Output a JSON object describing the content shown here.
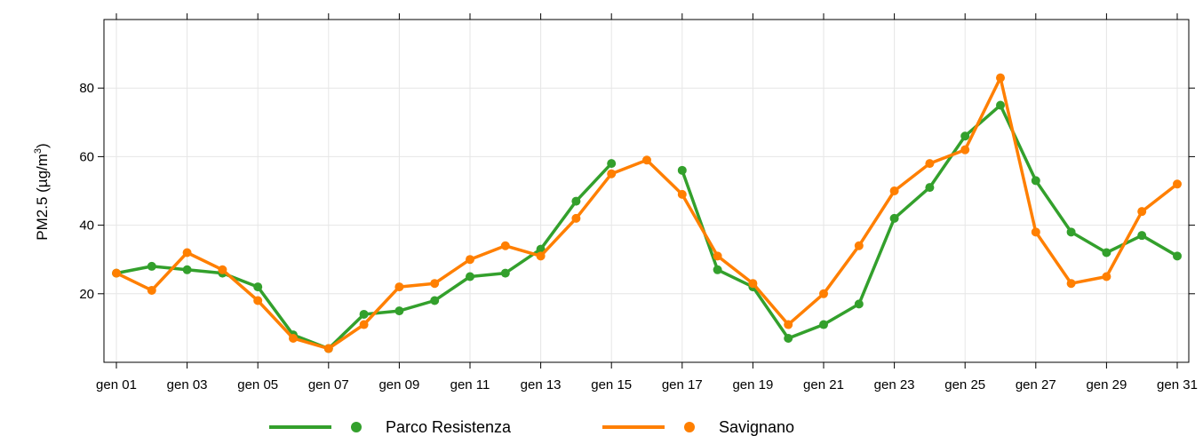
{
  "chart_data": {
    "type": "line",
    "ylabel": "PM2.5 (µg/m³)",
    "ylabel_parts": {
      "main": "PM2.5 (µg/m",
      "sup": "3",
      "close": ")"
    },
    "x": [
      "gen 01",
      "gen 02",
      "gen 03",
      "gen 04",
      "gen 05",
      "gen 06",
      "gen 07",
      "gen 08",
      "gen 09",
      "gen 10",
      "gen 11",
      "gen 12",
      "gen 13",
      "gen 14",
      "gen 15",
      "gen 16",
      "gen 17",
      "gen 18",
      "gen 19",
      "gen 20",
      "gen 21",
      "gen 22",
      "gen 23",
      "gen 24",
      "gen 25",
      "gen 26",
      "gen 27",
      "gen 28",
      "gen 29",
      "gen 30",
      "gen 31"
    ],
    "xticks": [
      "gen 01",
      "gen 03",
      "gen 05",
      "gen 07",
      "gen 09",
      "gen 11",
      "gen 13",
      "gen 15",
      "gen 17",
      "gen 19",
      "gen 21",
      "gen 23",
      "gen 25",
      "gen 27",
      "gen 29",
      "gen 31"
    ],
    "yticks": [
      20,
      40,
      60,
      80
    ],
    "ylim": [
      0,
      100
    ],
    "grid": true,
    "legend_position": "bottom",
    "series": [
      {
        "name": "Parco Resistenza",
        "color": "#33a02c",
        "values": [
          26,
          28,
          27,
          26,
          22,
          8,
          4,
          14,
          15,
          18,
          25,
          26,
          33,
          47,
          58,
          null,
          56,
          27,
          22,
          7,
          11,
          17,
          42,
          51,
          66,
          75,
          53,
          38,
          32,
          37,
          31
        ]
      },
      {
        "name": "Savignano",
        "color": "#ff7f00",
        "values": [
          26,
          21,
          32,
          27,
          18,
          7,
          4,
          11,
          22,
          23,
          30,
          34,
          31,
          42,
          55,
          59,
          49,
          31,
          23,
          11,
          20,
          34,
          50,
          58,
          62,
          83,
          38,
          23,
          25,
          44,
          52
        ]
      }
    ]
  }
}
